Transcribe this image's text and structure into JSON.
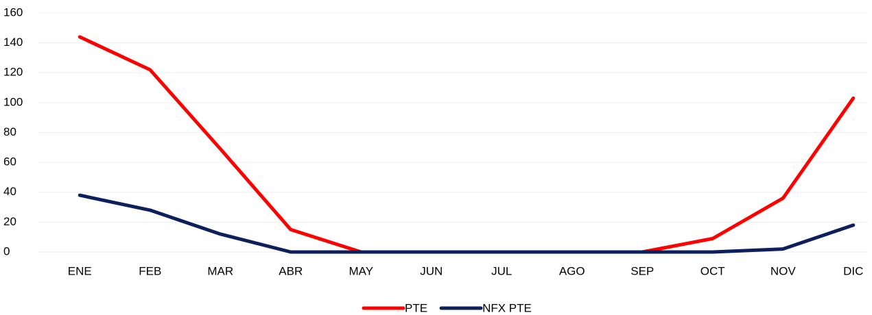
{
  "chart_data": {
    "type": "line",
    "categories": [
      "ENE",
      "FEB",
      "MAR",
      "ABR",
      "MAY",
      "JUN",
      "JUL",
      "AGO",
      "SEP",
      "OCT",
      "NOV",
      "DIC"
    ],
    "series": [
      {
        "name": "PTE",
        "color": "#ff0000",
        "values": [
          144,
          122,
          69,
          15,
          0,
          0,
          0,
          0,
          0,
          9,
          36,
          103
        ]
      },
      {
        "name": "NFX PTE",
        "color": "#0d1f5c",
        "values": [
          38,
          28,
          12,
          0,
          0,
          0,
          0,
          0,
          0,
          0,
          2,
          18
        ]
      }
    ],
    "ylim": [
      0,
      160
    ],
    "yticks": [
      0,
      20,
      40,
      60,
      80,
      100,
      120,
      140,
      160
    ],
    "grid": true,
    "legend": "bottom"
  }
}
